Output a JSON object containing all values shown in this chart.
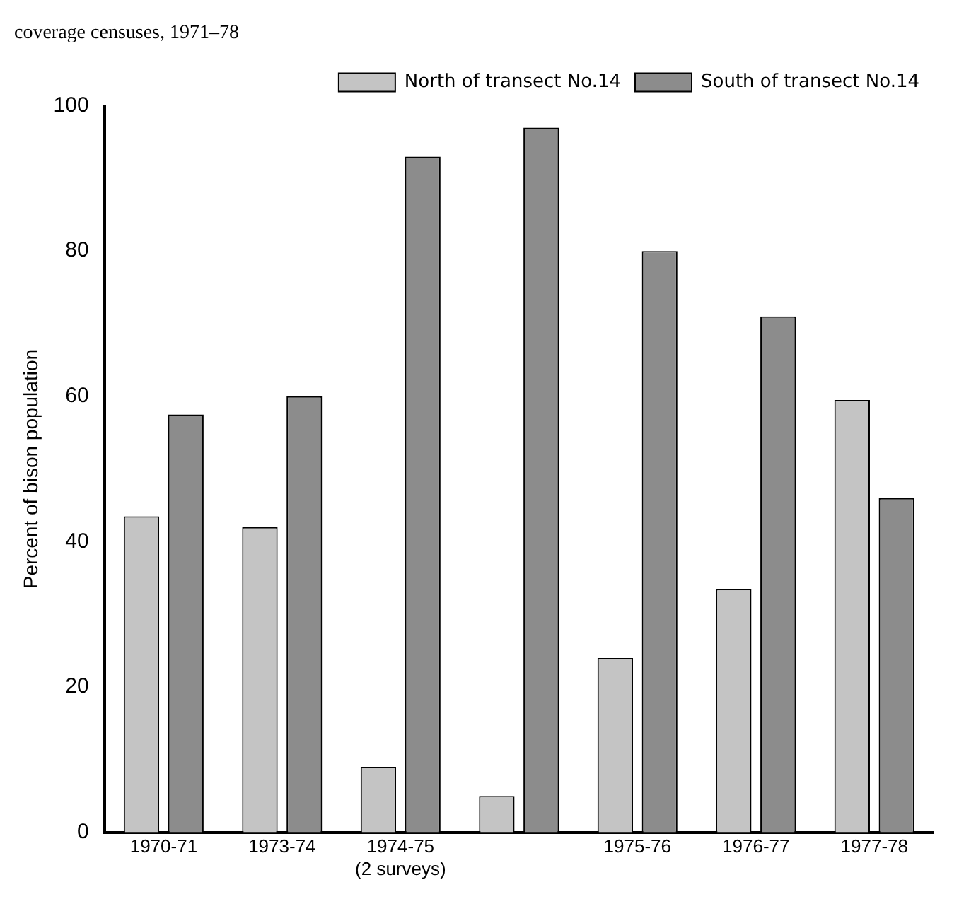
{
  "chart_data": {
    "type": "bar",
    "title": "coverage censuses, 1971–78",
    "ylabel": "Percent of bison population",
    "categories": [
      "1970-71",
      "1973-74",
      "1974-75 (2 surveys)",
      null,
      "1975-76",
      "1976-77",
      "1977-78"
    ],
    "series": [
      {
        "name": "North of transect No.14",
        "color": "#c4c4c4",
        "values": [
          43.5,
          42,
          9,
          5,
          24,
          33.5,
          59.5
        ]
      },
      {
        "name": "South of transect No.14",
        "color": "#8c8c8c",
        "values": [
          57.5,
          60,
          93,
          97,
          80,
          71,
          46
        ]
      }
    ],
    "ylim": [
      0,
      100
    ],
    "yticks": [
      0,
      20,
      40,
      60,
      80,
      100
    ],
    "grid": false,
    "legend": "top right"
  }
}
